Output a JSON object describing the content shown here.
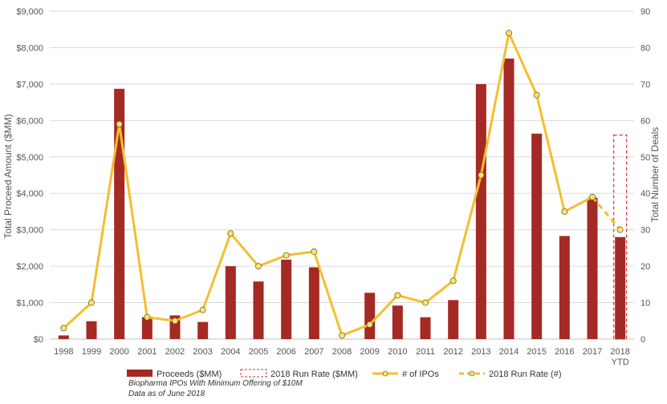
{
  "chart_data": {
    "type": "bar",
    "categories": [
      "1998",
      "1999",
      "2000",
      "2001",
      "2002",
      "2003",
      "2004",
      "2005",
      "2006",
      "2007",
      "2008",
      "2009",
      "2010",
      "2011",
      "2012",
      "2013",
      "2014",
      "2015",
      "2016",
      "2017",
      "2018 YTD"
    ],
    "series": [
      {
        "name": "Proceeds ($MM)",
        "type": "bar",
        "axis": "left",
        "values": [
          100,
          490,
          6870,
          600,
          650,
          470,
          2000,
          1580,
          2180,
          1970,
          0,
          1270,
          920,
          600,
          1070,
          7000,
          7700,
          5640,
          2830,
          3880,
          2800
        ]
      },
      {
        "name": "# of IPOs",
        "type": "line",
        "axis": "right",
        "values": [
          3,
          10,
          59,
          6,
          5,
          8,
          29,
          20,
          23,
          24,
          1,
          4,
          12,
          10,
          16,
          45,
          84,
          67,
          35,
          39,
          null
        ]
      },
      {
        "name": "2018 Run Rate (#)",
        "type": "line-dashed",
        "axis": "right",
        "values": [
          null,
          null,
          null,
          null,
          null,
          null,
          null,
          null,
          null,
          null,
          null,
          null,
          null,
          null,
          null,
          null,
          null,
          null,
          null,
          39,
          30
        ]
      },
      {
        "name": "2018 Run Rate ($MM)",
        "type": "bar-outline",
        "axis": "left",
        "values": [
          null,
          null,
          null,
          null,
          null,
          null,
          null,
          null,
          null,
          null,
          null,
          null,
          null,
          null,
          null,
          null,
          null,
          null,
          null,
          null,
          5600
        ]
      }
    ],
    "ylabel": "Total Proceed Amount ($MM)",
    "y2label": "Total Number of Deals",
    "ylim": [
      0,
      9000
    ],
    "y2lim": [
      0,
      90
    ],
    "yticks": [
      "$0",
      "$1,000",
      "$2,000",
      "$3,000",
      "$4,000",
      "$5,000",
      "$6,000",
      "$7,000",
      "$8,000",
      "$9,000"
    ],
    "y2ticks": [
      "0",
      "10",
      "20",
      "30",
      "40",
      "50",
      "60",
      "70",
      "80",
      "90"
    ],
    "grid": true,
    "legend_position": "bottom",
    "colors": {
      "bar": "#A52A24",
      "line": "#F5BE2E",
      "marker_fill": "#F5E27A",
      "runrate_outline": "#E03030",
      "grid": "#D9D9D9"
    }
  },
  "notes": [
    "Biopharma IPOs With Minimum Offering of $10M",
    "Data as of June 2018"
  ]
}
